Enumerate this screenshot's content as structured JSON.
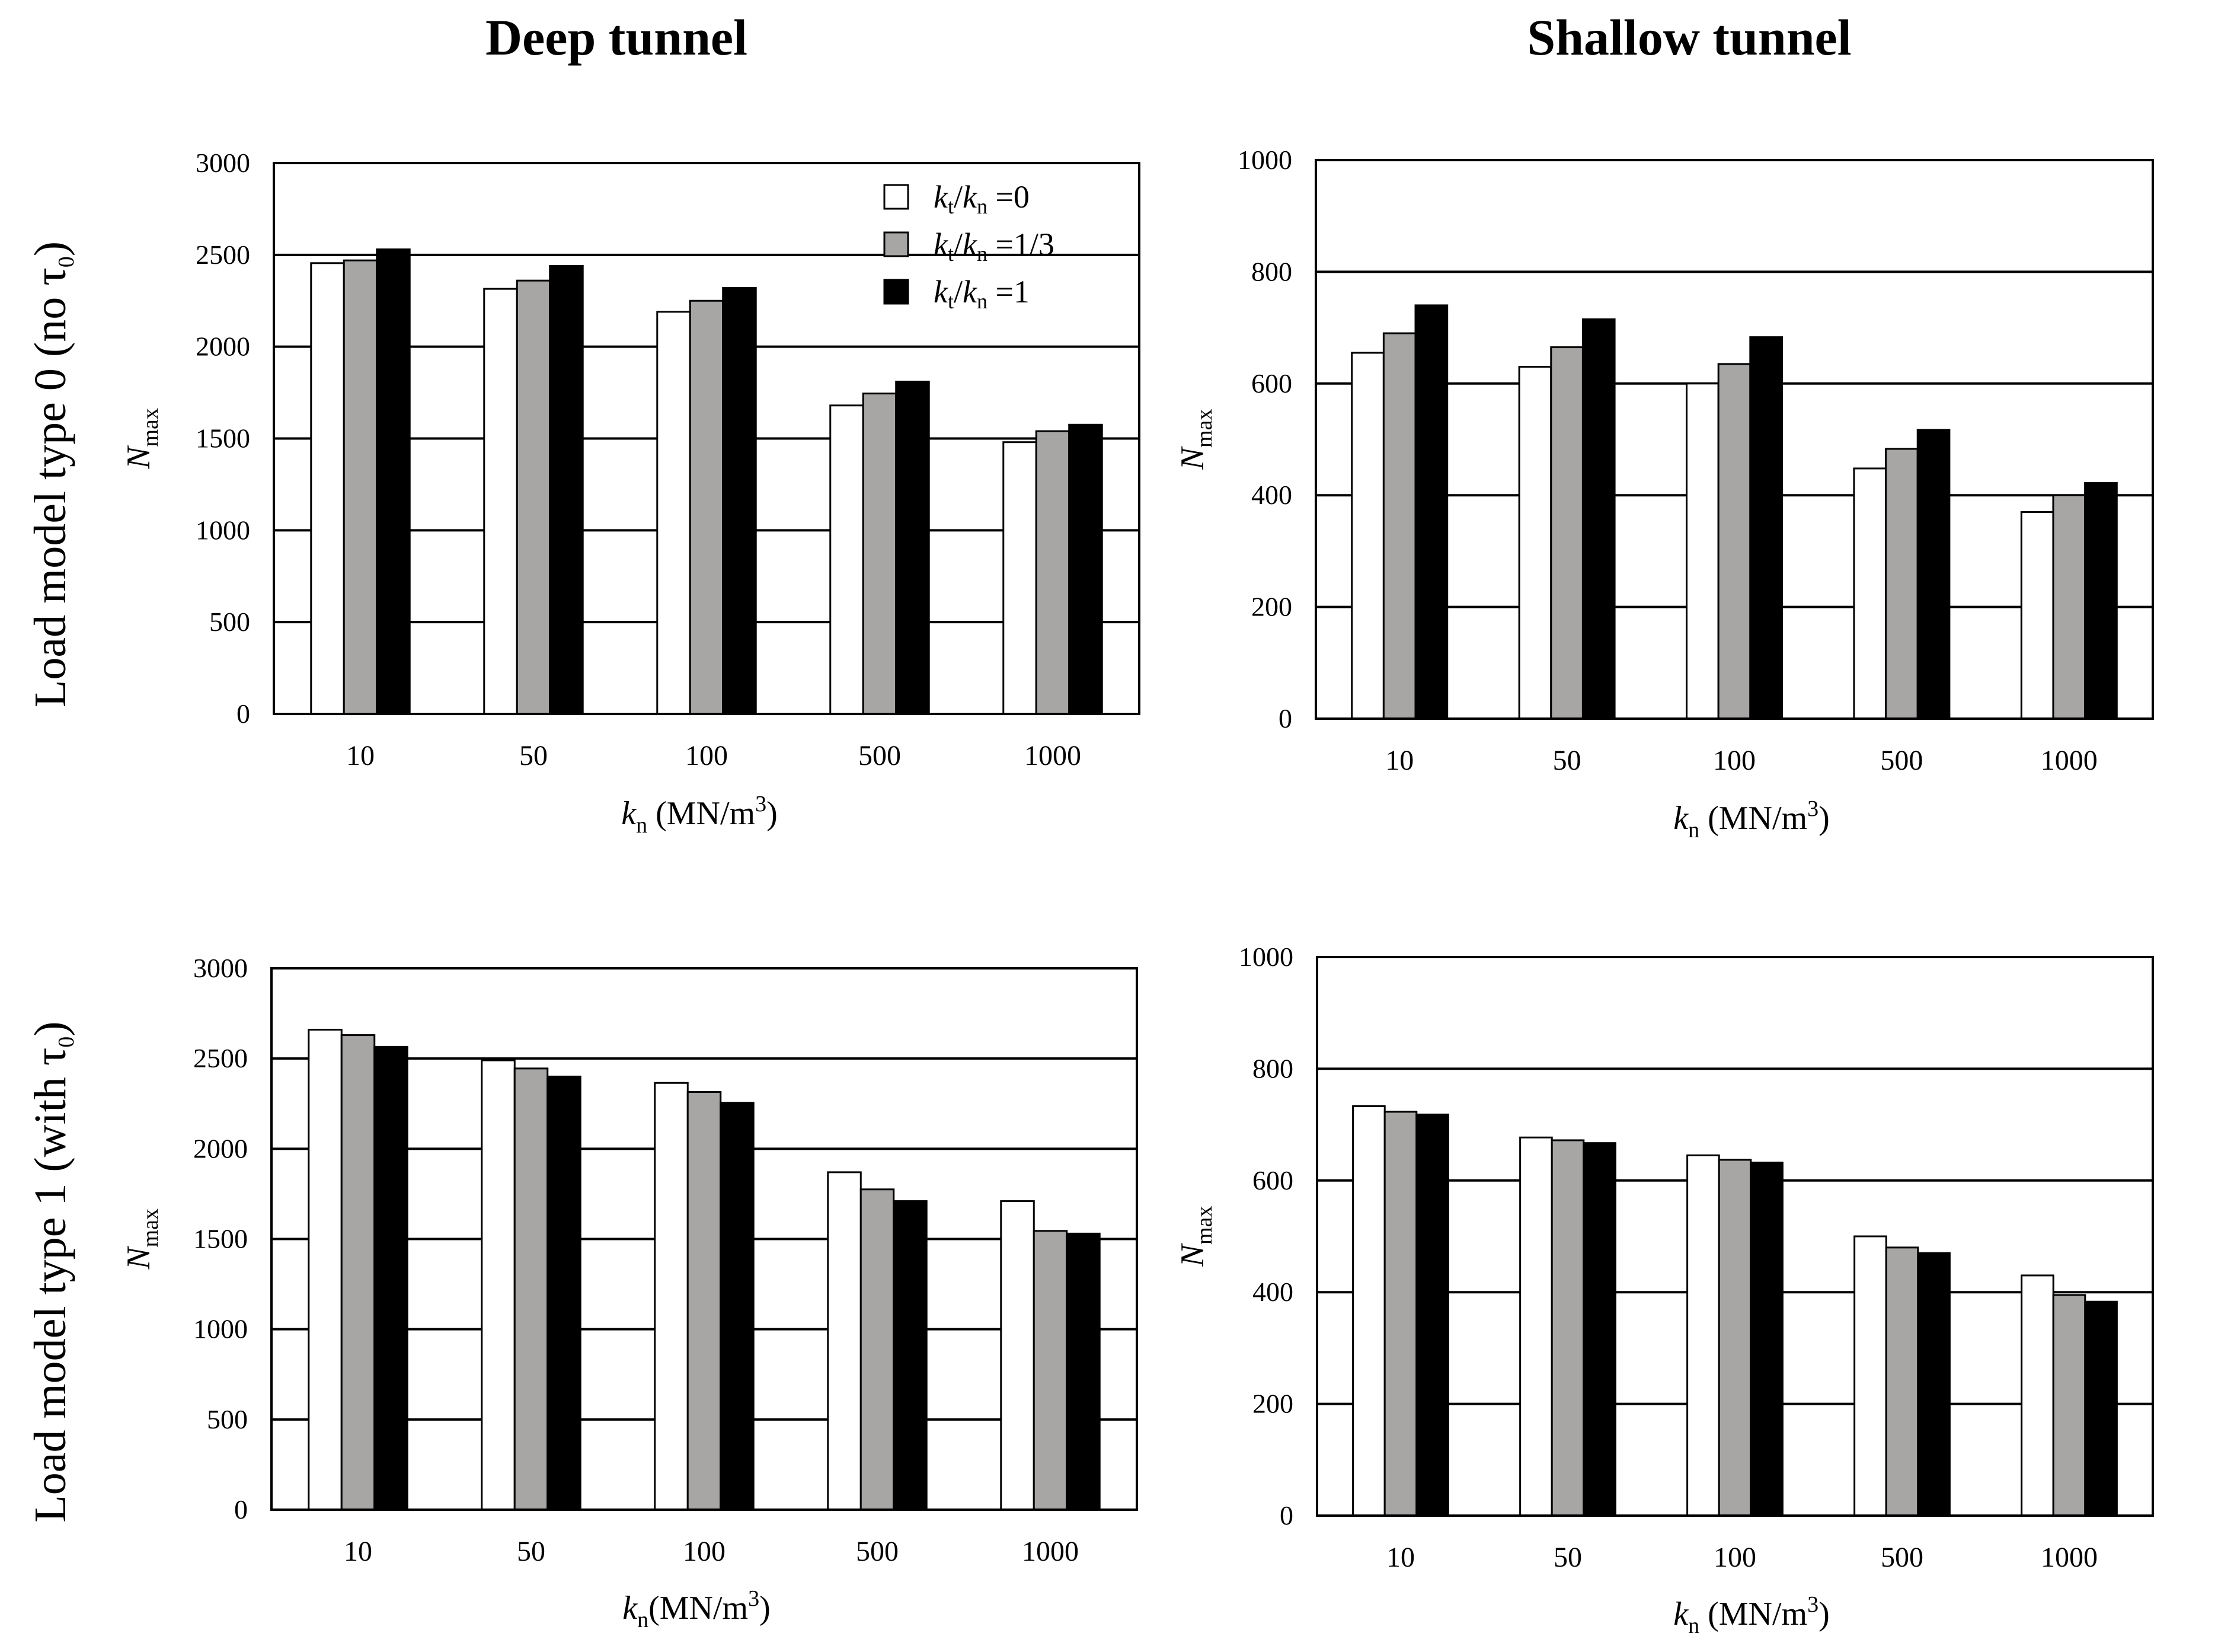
{
  "column_titles": [
    "Deep tunnel",
    "Shallow tunnel"
  ],
  "row_titles": [
    "Load model type 0 (no τ",
    "Load model type 1 (with τ"
  ],
  "row_title_sub": "0",
  "row_title_close": ")",
  "legend": {
    "entries": [
      {
        "k_t": "k",
        "t_sub": "t",
        "slash": "/",
        "k_n": "k",
        "n_sub": "n",
        "ratio": " =0",
        "color": "#ffffff"
      },
      {
        "k_t": "k",
        "t_sub": "t",
        "slash": "/",
        "k_n": "k",
        "n_sub": "n",
        "ratio": " =1/3",
        "color": "#a8a5a5"
      },
      {
        "k_t": "k",
        "t_sub": "t",
        "slash": "/",
        "k_n": "k",
        "n_sub": "n",
        "ratio": " =1",
        "color": "#000000"
      }
    ]
  },
  "chart_data": [
    {
      "type": "bar",
      "title": "Deep tunnel — Load model type 0 (no τ0)",
      "categories": [
        "10",
        "50",
        "100",
        "500",
        "1000"
      ],
      "xlabel": "k",
      "xlabel_sub": "n",
      "xlabel_unit": " (MN/m",
      "xlabel_sup": "3",
      "xlabel_close": ")",
      "ylabel": "N",
      "ylabel_sub": "max",
      "ylim": [
        0,
        3000
      ],
      "yticks": [
        "0",
        "500",
        "1000",
        "1500",
        "2000",
        "2500",
        "3000"
      ],
      "grid": true,
      "series": [
        {
          "name": "kt/kn =0",
          "values": [
            2455,
            2315,
            2190,
            1680,
            1480
          ]
        },
        {
          "name": "kt/kn =1/3",
          "values": [
            2470,
            2360,
            2250,
            1745,
            1540
          ]
        },
        {
          "name": "kt/kn =1",
          "values": [
            2530,
            2440,
            2320,
            1810,
            1575
          ]
        }
      ]
    },
    {
      "type": "bar",
      "title": "Shallow tunnel — Load model type 0 (no τ0)",
      "categories": [
        "10",
        "50",
        "100",
        "500",
        "1000"
      ],
      "xlabel": "k",
      "xlabel_sub": "n",
      "xlabel_unit": " (MN/m",
      "xlabel_sup": "3",
      "xlabel_close": ")",
      "ylabel": "N",
      "ylabel_sub": "max",
      "ylim": [
        0,
        1000
      ],
      "yticks": [
        "0",
        "200",
        "400",
        "600",
        "800",
        "1000"
      ],
      "grid": true,
      "series": [
        {
          "name": "kt/kn =0",
          "values": [
            655,
            630,
            600,
            448,
            370
          ]
        },
        {
          "name": "kt/kn =1/3",
          "values": [
            690,
            665,
            635,
            483,
            400
          ]
        },
        {
          "name": "kt/kn =1",
          "values": [
            740,
            715,
            683,
            517,
            422
          ]
        }
      ]
    },
    {
      "type": "bar",
      "title": "Deep tunnel — Load model type 1 (with τ0)",
      "categories": [
        "10",
        "50",
        "100",
        "500",
        "1000"
      ],
      "xlabel": "k",
      "xlabel_sub": "n",
      "xlabel_unit": "(MN/m",
      "xlabel_sup": "3",
      "xlabel_close": ")",
      "ylabel": "N",
      "ylabel_sub": "max",
      "ylim": [
        0,
        3000
      ],
      "yticks": [
        "0",
        "500",
        "1000",
        "1500",
        "2000",
        "2500",
        "3000"
      ],
      "grid": true,
      "series": [
        {
          "name": "kt/kn =0",
          "values": [
            2660,
            2490,
            2365,
            1870,
            1710
          ]
        },
        {
          "name": "kt/kn =1/3",
          "values": [
            2630,
            2445,
            2315,
            1775,
            1545
          ]
        },
        {
          "name": "kt/kn =1",
          "values": [
            2565,
            2400,
            2255,
            1710,
            1530
          ]
        }
      ]
    },
    {
      "type": "bar",
      "title": "Shallow tunnel — Load model type 1 (with τ0)",
      "categories": [
        "10",
        "50",
        "100",
        "500",
        "1000"
      ],
      "xlabel": "k",
      "xlabel_sub": "n",
      "xlabel_unit": " (MN/m",
      "xlabel_sup": "3",
      "xlabel_close": ")",
      "ylabel": "N",
      "ylabel_sub": "max",
      "ylim": [
        0,
        1000
      ],
      "yticks": [
        "0",
        "200",
        "400",
        "600",
        "800",
        "1000"
      ],
      "grid": true,
      "series": [
        {
          "name": "kt/kn =0",
          "values": [
            733,
            677,
            645,
            500,
            430
          ]
        },
        {
          "name": "kt/kn =1/3",
          "values": [
            723,
            672,
            637,
            480,
            395
          ]
        },
        {
          "name": "kt/kn =1",
          "values": [
            718,
            667,
            632,
            470,
            383
          ]
        }
      ]
    }
  ],
  "series_colors": [
    "#ffffff",
    "#a8a5a5",
    "#000000"
  ]
}
